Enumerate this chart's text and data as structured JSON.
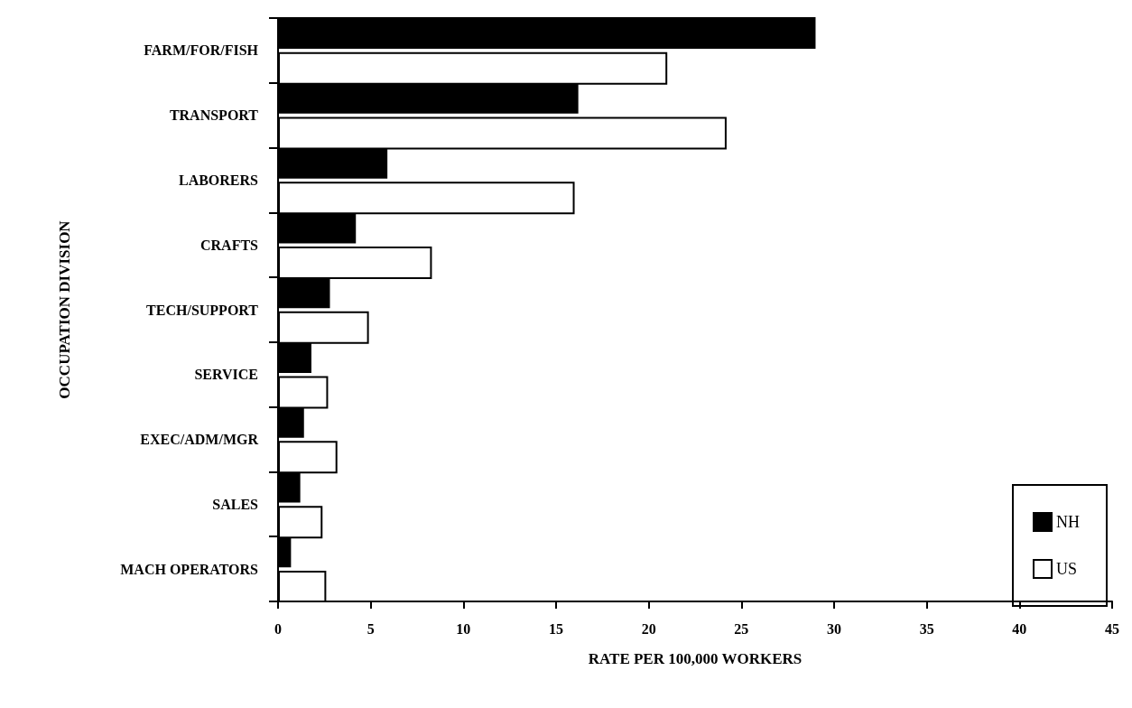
{
  "chart_data": {
    "type": "bar",
    "orientation": "horizontal",
    "xlabel": "RATE PER 100,000 WORKERS",
    "ylabel": "OCCUPATION DIVISION",
    "categories": [
      "FARM/FOR/FISH",
      "TRANSPORT",
      "LABORERS",
      "CRAFTS",
      "TECH/SUPPORT",
      "SERVICE",
      "EXEC/ADM/MGR",
      "SALES",
      "MACH OPERATORS"
    ],
    "series": [
      {
        "name": "NH",
        "color": "#000000",
        "values": [
          29.0,
          16.2,
          5.9,
          4.2,
          2.8,
          1.8,
          1.4,
          1.2,
          0.7
        ]
      },
      {
        "name": "US",
        "color": "#ffffff",
        "values": [
          21.0,
          24.2,
          16.0,
          8.3,
          4.9,
          2.7,
          3.2,
          2.4,
          2.6
        ]
      }
    ],
    "xlim": [
      0,
      45
    ],
    "xticks": [
      0,
      5,
      10,
      15,
      20,
      25,
      30,
      35,
      40,
      45
    ],
    "grid": false,
    "legend": "bottom right"
  }
}
